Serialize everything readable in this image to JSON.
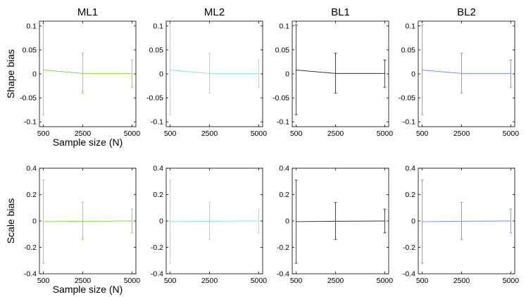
{
  "chart_data": {
    "type": "line",
    "x": [
      500,
      2500,
      5000
    ],
    "xlim": [
      300,
      5200
    ],
    "xticks": [
      500,
      2500,
      5000
    ],
    "xticklabels": [
      "500",
      "2500",
      "5000"
    ],
    "column_titles": [
      "ML1",
      "ML2",
      "BL1",
      "BL2"
    ],
    "xlabel": "Sample size (N)",
    "grid": false,
    "legend": "none",
    "rows": [
      {
        "ylabel": "Shape bias",
        "ylim": [
          -0.11,
          0.11
        ],
        "yticks": [
          -0.1,
          -0.05,
          0,
          0.05,
          0.1
        ],
        "yticklabels": [
          "-0.1",
          "-0.05",
          "0",
          "0.05",
          "0.1"
        ]
      },
      {
        "ylabel": "Scale bias",
        "ylim": [
          -0.4,
          0.4
        ],
        "yticks": [
          -0.4,
          -0.2,
          0,
          0.2,
          0.4
        ],
        "yticklabels": [
          "-0.4",
          "-0.2",
          "0",
          "0.2",
          "0.4"
        ]
      }
    ],
    "panels": [
      {
        "row": 0,
        "col": 0,
        "title": "ML1",
        "color": "#7fe03a",
        "values": [
          0.008,
          0.001,
          0.001
        ],
        "err_low": [
          -0.085,
          -0.04,
          -0.028
        ],
        "err_high": [
          0.105,
          0.043,
          0.029
        ],
        "show_xlabel": true
      },
      {
        "row": 0,
        "col": 1,
        "title": "ML2",
        "color": "#7fe8d8",
        "values": [
          0.008,
          0.001,
          0.001
        ],
        "err_low": [
          -0.085,
          -0.04,
          -0.028
        ],
        "err_high": [
          0.105,
          0.043,
          0.029
        ],
        "show_xlabel": false
      },
      {
        "row": 0,
        "col": 2,
        "title": "BL1",
        "color": "#333333",
        "values": [
          0.008,
          0.001,
          0.001
        ],
        "err_low": [
          -0.085,
          -0.04,
          -0.028
        ],
        "err_high": [
          0.102,
          0.043,
          0.029
        ],
        "show_xlabel": false
      },
      {
        "row": 0,
        "col": 3,
        "title": "BL2",
        "color": "#6f8fff",
        "values": [
          0.008,
          0.001,
          0.001
        ],
        "err_low": [
          -0.085,
          -0.04,
          -0.028
        ],
        "err_high": [
          0.102,
          0.043,
          0.029
        ],
        "show_xlabel": false
      },
      {
        "row": 1,
        "col": 0,
        "title": "",
        "color": "#7fe03a",
        "values": [
          -0.005,
          -0.002,
          0.0
        ],
        "err_low": [
          -0.32,
          -0.14,
          -0.09
        ],
        "err_high": [
          0.31,
          0.14,
          0.09
        ],
        "show_xlabel": true
      },
      {
        "row": 1,
        "col": 1,
        "title": "",
        "color": "#7fe8d8",
        "values": [
          -0.005,
          -0.002,
          0.0
        ],
        "err_low": [
          -0.32,
          -0.14,
          -0.09
        ],
        "err_high": [
          0.31,
          0.14,
          0.09
        ],
        "show_xlabel": false
      },
      {
        "row": 1,
        "col": 2,
        "title": "",
        "color": "#333333",
        "values": [
          -0.005,
          -0.002,
          0.0
        ],
        "err_low": [
          -0.32,
          -0.14,
          -0.09
        ],
        "err_high": [
          0.31,
          0.14,
          0.09
        ],
        "show_xlabel": false
      },
      {
        "row": 1,
        "col": 3,
        "title": "",
        "color": "#6f8fff",
        "values": [
          -0.005,
          -0.002,
          0.0
        ],
        "err_low": [
          -0.32,
          -0.14,
          -0.09
        ],
        "err_high": [
          0.31,
          0.14,
          0.09
        ],
        "show_xlabel": false
      }
    ]
  }
}
